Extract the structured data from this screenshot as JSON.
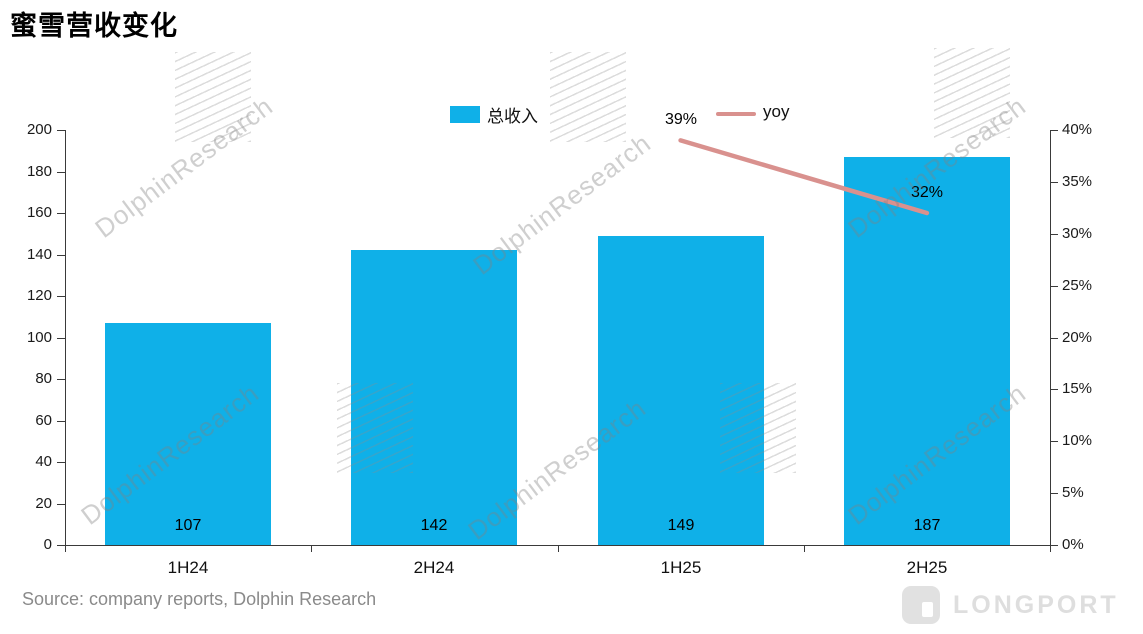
{
  "title": "蜜雪营收变化",
  "source": "Source: company reports, Dolphin Research",
  "brand": {
    "logo_text": "LONGPORT"
  },
  "watermark": {
    "text": "DolphinResearch"
  },
  "legend": [
    {
      "label": "总收入",
      "type": "bar"
    },
    {
      "label": "yoy",
      "type": "line"
    }
  ],
  "colors": {
    "bar": "#0FB0E8",
    "line": "#D9918E",
    "axis": "#3a3a3a",
    "watermark": "#c9c9c9"
  },
  "chart_data": {
    "type": "bar+line",
    "categories": [
      "1H24",
      "2H24",
      "1H25",
      "2H25"
    ],
    "series": [
      {
        "name": "总收入",
        "type": "bar",
        "axis": "left",
        "values": [
          107,
          142,
          149,
          187
        ]
      },
      {
        "name": "yoy",
        "type": "line",
        "axis": "right",
        "values": [
          null,
          null,
          0.39,
          0.32
        ],
        "labels": [
          "",
          "",
          "39%",
          "32%"
        ]
      }
    ],
    "left_axis": {
      "min": 0,
      "max": 200,
      "step": 20,
      "ticks": [
        "0",
        "20",
        "40",
        "60",
        "80",
        "100",
        "120",
        "140",
        "160",
        "180",
        "200"
      ]
    },
    "right_axis": {
      "min": 0,
      "max": 0.4,
      "step": 0.05,
      "ticks": [
        "0%",
        "5%",
        "10%",
        "15%",
        "20%",
        "25%",
        "30%",
        "35%",
        "40%"
      ]
    },
    "grid": false,
    "legend_position": "top-center"
  }
}
